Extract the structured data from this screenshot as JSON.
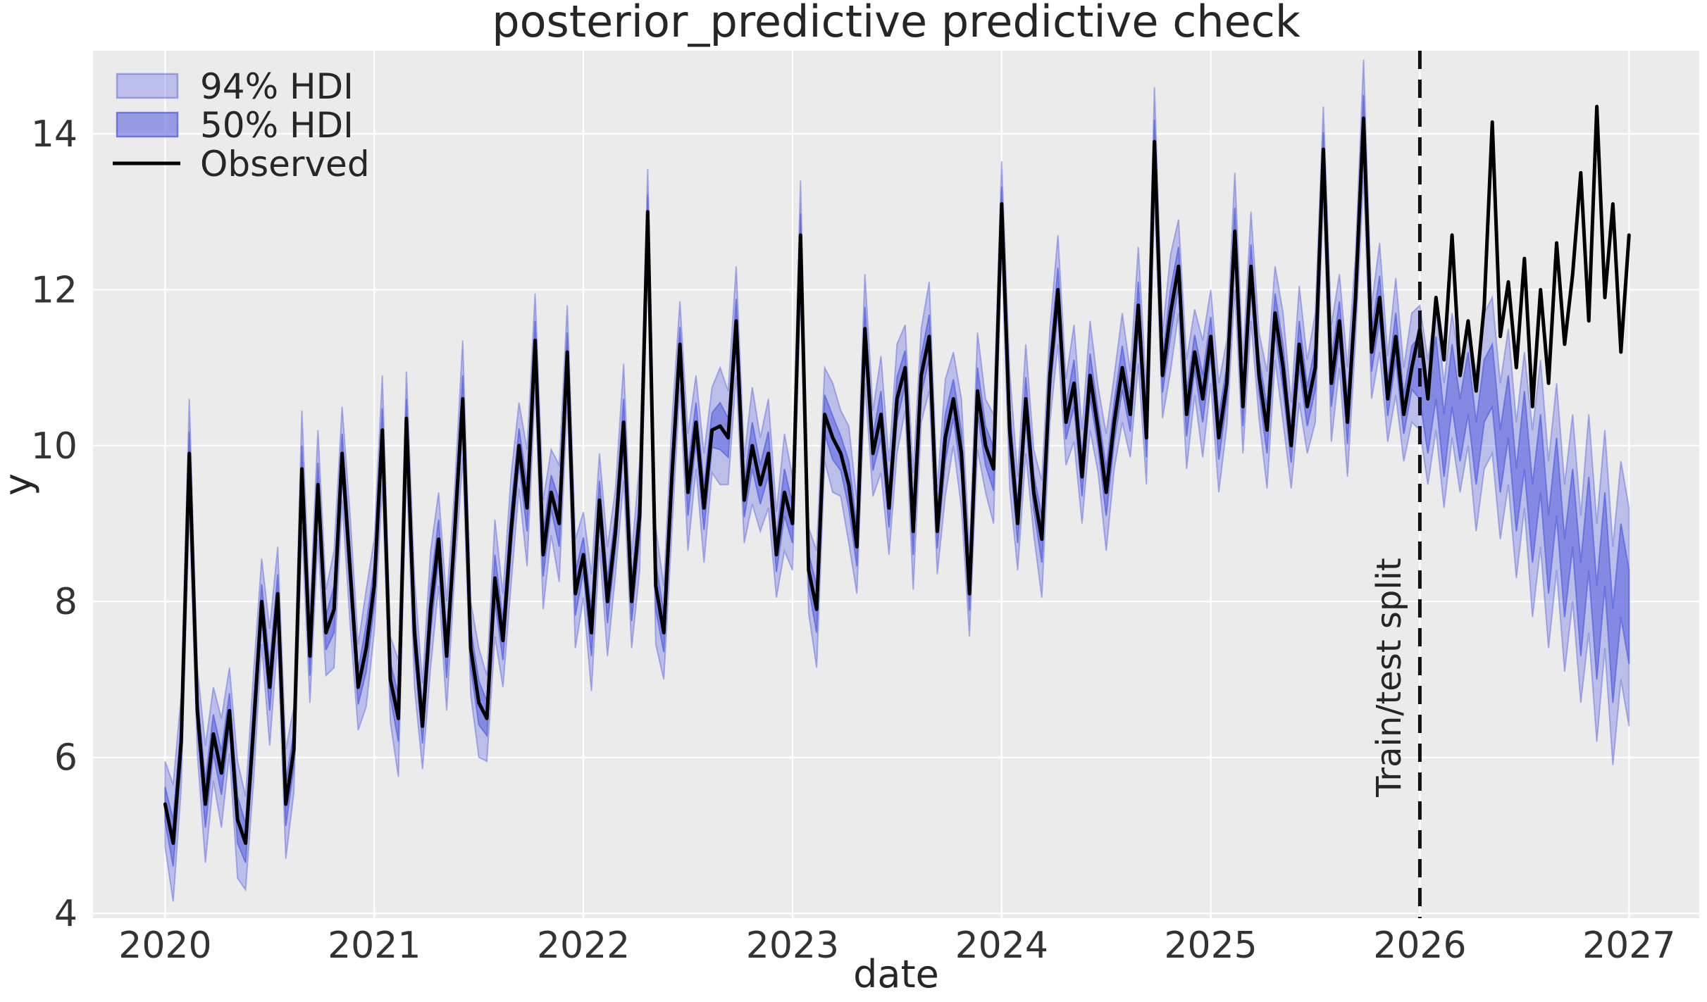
{
  "title": "posterior_predictive predictive check",
  "axes": {
    "xlabel": "date",
    "ylabel": "y",
    "xticks": [
      2020,
      2021,
      2022,
      2023,
      2024,
      2025,
      2026,
      2027
    ],
    "yticks": [
      4,
      6,
      8,
      10,
      12,
      14
    ],
    "xlim": [
      2019.655,
      2027.336
    ],
    "ylim": [
      3.937,
      15.066
    ],
    "grid": "white major gridlines on gray background"
  },
  "legend": {
    "position": "upper left",
    "items": [
      {
        "label": "94% HDI",
        "swatch": "band94"
      },
      {
        "label": "50% HDI",
        "swatch": "band50"
      },
      {
        "label": "Observed",
        "swatch": "line"
      }
    ]
  },
  "annotation": {
    "text": "Train/test split",
    "x": 2026.0,
    "rotation": -90
  },
  "colors": {
    "band_base": "#626be1",
    "band94_fill_opacity": 0.35,
    "band50_fill_opacity": 0.62,
    "band_edge": "#5a64dc",
    "observed_line": "#000000",
    "plot_background": "#ebebeb",
    "gridline": "#ffffff",
    "split_line": "#111111",
    "text": "#262626"
  },
  "chart_data": {
    "type": "line",
    "title": "posterior_predictive predictive check",
    "xlabel": "date",
    "ylabel": "y",
    "x_unit": "decimal_year",
    "x_start": 2020.0,
    "x_step": 0.0384615,
    "n_points": 183,
    "split_x": 2026.0,
    "split_index": 156,
    "legend_entries": [
      "94% HDI",
      "50% HDI",
      "Observed"
    ],
    "observed": [
      5.4,
      4.9,
      6.2,
      9.9,
      6.6,
      5.4,
      6.3,
      5.8,
      6.6,
      5.2,
      4.9,
      6.4,
      8.0,
      6.9,
      8.1,
      5.4,
      6.1,
      9.7,
      7.3,
      9.5,
      7.6,
      7.9,
      9.9,
      8.4,
      6.9,
      7.4,
      8.2,
      10.2,
      7.0,
      6.5,
      10.35,
      7.6,
      6.4,
      7.9,
      8.8,
      7.3,
      8.9,
      10.6,
      7.4,
      6.7,
      6.5,
      8.3,
      7.5,
      8.9,
      10.0,
      9.2,
      11.35,
      8.6,
      9.4,
      9.0,
      11.2,
      8.1,
      8.6,
      7.6,
      9.3,
      8.0,
      8.9,
      10.3,
      8.0,
      9.1,
      13.0,
      8.2,
      7.6,
      9.6,
      11.3,
      9.4,
      10.3,
      9.2,
      10.2,
      10.25,
      10.1,
      11.6,
      9.3,
      10.0,
      9.5,
      9.9,
      8.6,
      9.4,
      9.0,
      12.7,
      8.4,
      7.9,
      10.4,
      10.1,
      9.9,
      9.5,
      8.7,
      11.5,
      9.9,
      10.4,
      9.2,
      10.6,
      11.0,
      8.9,
      10.9,
      11.4,
      8.9,
      10.1,
      10.6,
      9.9,
      8.1,
      10.7,
      10.0,
      9.7,
      13.1,
      10.2,
      9.0,
      10.6,
      9.4,
      8.8,
      10.9,
      12.0,
      10.3,
      10.8,
      9.6,
      10.9,
      10.2,
      9.4,
      10.3,
      11.0,
      10.4,
      11.8,
      10.1,
      13.9,
      10.9,
      11.7,
      12.3,
      10.4,
      11.2,
      10.6,
      11.4,
      10.1,
      10.8,
      12.75,
      10.5,
      12.3,
      10.9,
      10.2,
      11.7,
      11.0,
      10.0,
      11.3,
      10.5,
      11.0,
      13.8,
      10.8,
      11.6,
      10.3,
      11.9,
      14.2,
      11.2,
      11.9,
      10.6,
      11.4,
      10.4,
      11.0,
      11.5,
      10.6,
      11.9,
      11.1,
      12.7,
      10.9,
      11.6,
      10.7,
      11.8,
      14.15,
      11.4,
      12.1,
      11.0,
      12.4,
      10.5,
      12.0,
      10.8,
      12.6,
      11.3,
      12.2,
      13.5,
      11.6,
      14.35,
      11.9,
      13.1,
      11.2,
      12.7
    ],
    "forecast_center": [
      11.0,
      10.3,
      11.0,
      10.0,
      10.9,
      10.2,
      10.8,
      9.9,
      10.7,
      10.9,
      9.8,
      10.5,
      9.3,
      10.2,
      9.0,
      9.9,
      8.6,
      9.6,
      8.3,
      9.2,
      7.9,
      9.0,
      7.6,
      8.8,
      7.3,
      8.4,
      7.8
    ],
    "hdi94_halfwidth": [
      0.55,
      0.75,
      0.6,
      0.7,
      0.55,
      0.75,
      0.6,
      0.7,
      0.55,
      0.75,
      0.6,
      0.7,
      0.55,
      0.75,
      0.6,
      0.7,
      0.55,
      0.75,
      0.6,
      0.7,
      0.55,
      0.75,
      0.6,
      0.7,
      0.55,
      0.75,
      0.6,
      0.7,
      0.55,
      0.75,
      0.6,
      0.7,
      0.55,
      0.75,
      0.6,
      0.7,
      0.55,
      0.75,
      0.6,
      0.7,
      0.55,
      0.75,
      0.6,
      0.7,
      0.55,
      0.75,
      0.6,
      0.7,
      0.55,
      0.75,
      0.6,
      0.7,
      0.55,
      0.75,
      0.6,
      0.7,
      0.55,
      0.75,
      0.6,
      0.7,
      0.55,
      0.75,
      0.6,
      0.7,
      0.55,
      0.75,
      0.6,
      0.7,
      0.55,
      0.75,
      0.6,
      0.7,
      0.55,
      0.75,
      0.6,
      0.7,
      0.55,
      0.75,
      0.6,
      0.7,
      0.55,
      0.75,
      0.6,
      0.7,
      0.55,
      0.75,
      0.6,
      0.7,
      0.55,
      0.75,
      0.6,
      0.7,
      0.55,
      0.75,
      0.6,
      0.7,
      0.55,
      0.75,
      0.6,
      0.7,
      0.55,
      0.75,
      0.6,
      0.7,
      0.55,
      0.75,
      0.6,
      0.7,
      0.55,
      0.75,
      0.6,
      0.7,
      0.55,
      0.75,
      0.6,
      0.7,
      0.55,
      0.75,
      0.6,
      0.7,
      0.55,
      0.75,
      0.6,
      0.7,
      0.55,
      0.75,
      0.6,
      0.7,
      0.55,
      0.75,
      0.6,
      0.7,
      0.55,
      0.75,
      0.6,
      0.7,
      0.55,
      0.75,
      0.6,
      0.7,
      0.55,
      0.75,
      0.6,
      0.7,
      0.55,
      0.75,
      0.6,
      0.7,
      0.55,
      0.75,
      0.6,
      0.7,
      0.55,
      0.75,
      0.6,
      0.7,
      0.8,
      0.8,
      0.8,
      0.8,
      0.8,
      0.8,
      0.8,
      1.0,
      1.0,
      1.0,
      1.0,
      1.0,
      1.0,
      1.0,
      1.2,
      1.2,
      1.2,
      1.2,
      1.2,
      1.2,
      1.2,
      1.4,
      1.4,
      1.4,
      1.4,
      1.4,
      1.4
    ],
    "hdi50_halfwidth": [
      0.22,
      0.3,
      0.25,
      0.28,
      0.22,
      0.3,
      0.25,
      0.28,
      0.22,
      0.3,
      0.25,
      0.28,
      0.22,
      0.3,
      0.25,
      0.28,
      0.22,
      0.3,
      0.25,
      0.28,
      0.22,
      0.3,
      0.25,
      0.28,
      0.22,
      0.3,
      0.25,
      0.28,
      0.22,
      0.3,
      0.25,
      0.28,
      0.22,
      0.3,
      0.25,
      0.28,
      0.22,
      0.3,
      0.25,
      0.28,
      0.22,
      0.3,
      0.25,
      0.28,
      0.22,
      0.3,
      0.25,
      0.28,
      0.22,
      0.3,
      0.25,
      0.28,
      0.22,
      0.3,
      0.25,
      0.28,
      0.22,
      0.3,
      0.25,
      0.28,
      0.22,
      0.3,
      0.25,
      0.28,
      0.22,
      0.3,
      0.25,
      0.28,
      0.22,
      0.3,
      0.25,
      0.28,
      0.22,
      0.3,
      0.25,
      0.28,
      0.22,
      0.3,
      0.25,
      0.28,
      0.22,
      0.3,
      0.25,
      0.28,
      0.22,
      0.3,
      0.25,
      0.28,
      0.22,
      0.3,
      0.25,
      0.28,
      0.22,
      0.3,
      0.25,
      0.28,
      0.22,
      0.3,
      0.25,
      0.28,
      0.22,
      0.3,
      0.25,
      0.28,
      0.22,
      0.3,
      0.25,
      0.28,
      0.22,
      0.3,
      0.25,
      0.28,
      0.22,
      0.3,
      0.25,
      0.28,
      0.22,
      0.3,
      0.25,
      0.28,
      0.22,
      0.3,
      0.25,
      0.28,
      0.22,
      0.3,
      0.25,
      0.28,
      0.22,
      0.3,
      0.25,
      0.28,
      0.22,
      0.3,
      0.25,
      0.28,
      0.22,
      0.3,
      0.25,
      0.28,
      0.22,
      0.3,
      0.25,
      0.28,
      0.22,
      0.3,
      0.25,
      0.28,
      0.22,
      0.3,
      0.25,
      0.28,
      0.22,
      0.3,
      0.25,
      0.28,
      0.4,
      0.4,
      0.4,
      0.4,
      0.4,
      0.4,
      0.4,
      0.4,
      0.4,
      0.4,
      0.4,
      0.4,
      0.4,
      0.5,
      0.5,
      0.5,
      0.5,
      0.5,
      0.5,
      0.5,
      0.6,
      0.6,
      0.6,
      0.6,
      0.6,
      0.6,
      0.6
    ]
  }
}
